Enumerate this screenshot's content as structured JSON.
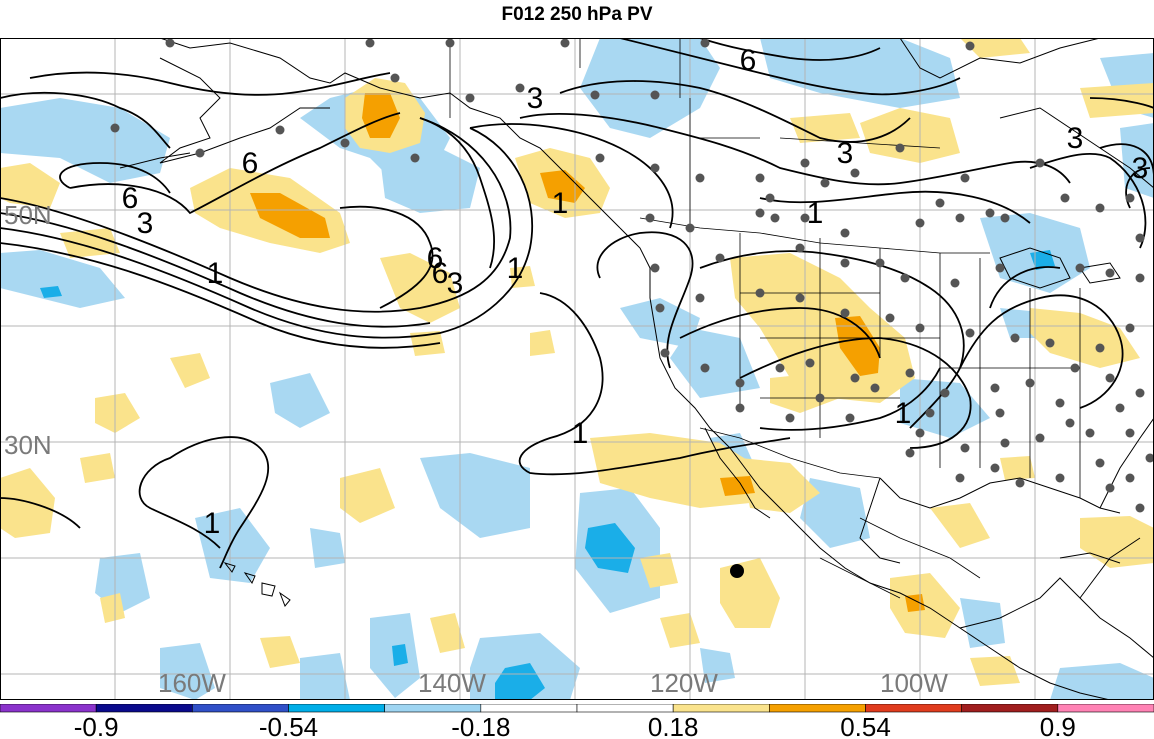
{
  "title": "F012 250 hPa PV",
  "grid_labels": {
    "lat": [
      "50N",
      "30N"
    ],
    "lon": [
      "160W",
      "140W",
      "120W",
      "100W"
    ]
  },
  "contour_labels": [
    "6",
    "6",
    "3",
    "1",
    "6",
    "3",
    "3",
    "1",
    "1",
    "6",
    "3",
    "3",
    "6",
    "1",
    "1",
    "1",
    "1",
    "3"
  ],
  "colorbar": {
    "colors": [
      "#8b33cc",
      "#0a0a8c",
      "#3050c8",
      "#00aee8",
      "#9ed5f2",
      "#ffffff",
      "#ffffff",
      "#fae38c",
      "#f5a000",
      "#e03c1e",
      "#a01e1e",
      "#ff82b4"
    ],
    "labels": [
      "-0.9",
      "-0.54",
      "-0.18",
      "0.18",
      "0.54",
      "0.9"
    ]
  },
  "colors": {
    "pos_light": "#fae38c",
    "pos_mid": "#f5a000",
    "neg_light": "#a9d8f2",
    "neg_mid": "#1aaee8",
    "gridline": "#b4b4b4",
    "grid_label": "#7a7a7a",
    "station": "#555555"
  }
}
